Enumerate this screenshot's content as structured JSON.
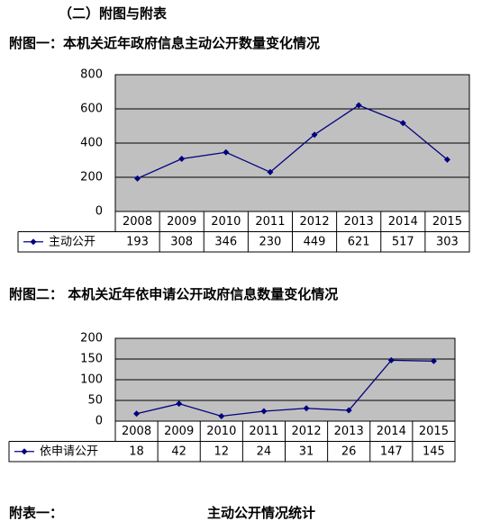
{
  "section_title": "（二）附图与附表",
  "chart_data": [
    {
      "type": "line",
      "title": "附图一：本机关近年政府信息主动公开数量变化情况",
      "categories": [
        "2008",
        "2009",
        "2010",
        "2011",
        "2012",
        "2013",
        "2014",
        "2015"
      ],
      "series": [
        {
          "name": "主动公开",
          "color": "#000080",
          "values": [
            193,
            308,
            346,
            230,
            449,
            621,
            517,
            303
          ]
        }
      ],
      "ylim": [
        0,
        800
      ],
      "yticks": [
        0,
        200,
        400,
        600,
        800
      ],
      "grid": true
    },
    {
      "type": "line",
      "title": "附图二：  本机关近年依申请公开政府信息数量变化情况",
      "categories": [
        "2008",
        "2009",
        "2010",
        "2011",
        "2012",
        "2013",
        "2014",
        "2015"
      ],
      "series": [
        {
          "name": "依申请公开",
          "color": "#000080",
          "values": [
            18,
            42,
            12,
            24,
            31,
            26,
            147,
            145
          ]
        }
      ],
      "ylim": [
        0,
        200
      ],
      "yticks": [
        0,
        50,
        100,
        150,
        200
      ],
      "grid": true
    }
  ],
  "table_caption": {
    "label": "附表一：",
    "title": "主动公开情况统计"
  }
}
